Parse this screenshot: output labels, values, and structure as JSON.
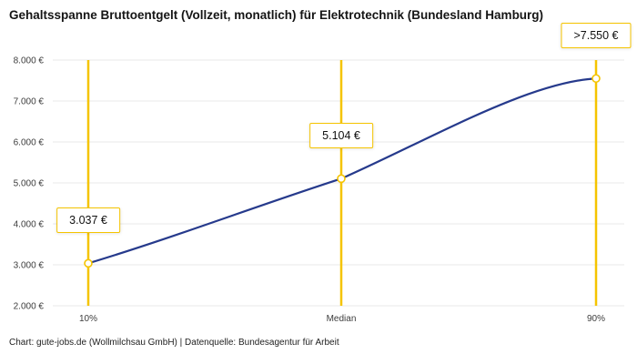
{
  "chart_data": {
    "type": "line",
    "title": "Gehaltsspanne Bruttoentgelt (Vollzeit, monatlich) für Elektrotechnik (Bundesland Hamburg)",
    "categories": [
      "10%",
      "Median",
      "90%"
    ],
    "values": [
      3037,
      5104,
      7550
    ],
    "point_labels": [
      "3.037 €",
      "5.104 €",
      ">7.550 €"
    ],
    "ylim": [
      2000,
      8000
    ],
    "yticks": [
      2000,
      3000,
      4000,
      5000,
      6000,
      7000,
      8000
    ],
    "ytick_labels": [
      "2.000 €",
      "3.000 €",
      "4.000 €",
      "5.000 €",
      "6.000 €",
      "7.000 €",
      "8.000 €"
    ],
    "grid": true,
    "legend": "none",
    "xlabel": "",
    "ylabel": ""
  },
  "footer": {
    "text": "Chart: gute-jobs.de (Wollmilchsau GmbH) | Datenquelle: Bundesagentur für Arbeit"
  },
  "colors": {
    "accent": "#f5c400",
    "line": "#263a8c",
    "grid": "#e8e8e8",
    "text": "#151515",
    "muted": "#3c3c3c"
  }
}
